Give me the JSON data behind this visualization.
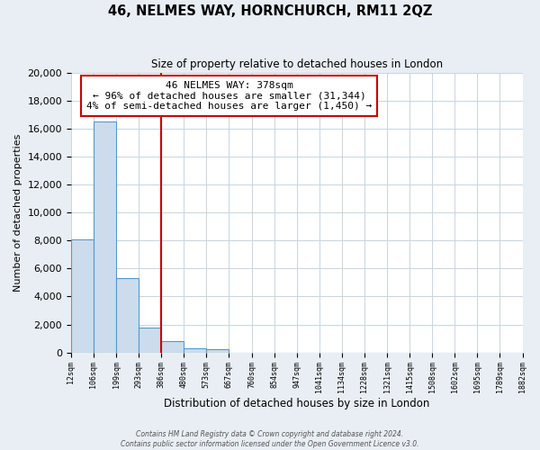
{
  "title": "46, NELMES WAY, HORNCHURCH, RM11 2QZ",
  "subtitle": "Size of property relative to detached houses in London",
  "xlabel": "Distribution of detached houses by size in London",
  "ylabel": "Number of detached properties",
  "bin_labels": [
    "12sqm",
    "106sqm",
    "199sqm",
    "293sqm",
    "386sqm",
    "480sqm",
    "573sqm",
    "667sqm",
    "760sqm",
    "854sqm",
    "947sqm",
    "1041sqm",
    "1134sqm",
    "1228sqm",
    "1321sqm",
    "1415sqm",
    "1508sqm",
    "1602sqm",
    "1695sqm",
    "1789sqm",
    "1882sqm"
  ],
  "bar_values": [
    8100,
    16500,
    5300,
    1800,
    800,
    300,
    250,
    0,
    0,
    0,
    0,
    0,
    0,
    0,
    0,
    0,
    0,
    0,
    0,
    0
  ],
  "bar_color": "#ccdcec",
  "bar_edge_color": "#5599cc",
  "vline_x_index": 4,
  "vline_color": "#cc0000",
  "annotation_line1": "46 NELMES WAY: 378sqm",
  "annotation_line2": "← 96% of detached houses are smaller (31,344)",
  "annotation_line3": "4% of semi-detached houses are larger (1,450) →",
  "annotation_box_color": "white",
  "annotation_box_edge_color": "#cc0000",
  "ylim": [
    0,
    20000
  ],
  "yticks": [
    0,
    2000,
    4000,
    6000,
    8000,
    10000,
    12000,
    14000,
    16000,
    18000,
    20000
  ],
  "footer_line1": "Contains HM Land Registry data © Crown copyright and database right 2024.",
  "footer_line2": "Contains public sector information licensed under the Open Government Licence v3.0.",
  "bg_color": "#e8eef4",
  "plot_bg_color": "#ffffff",
  "grid_color": "#c8d4e0"
}
